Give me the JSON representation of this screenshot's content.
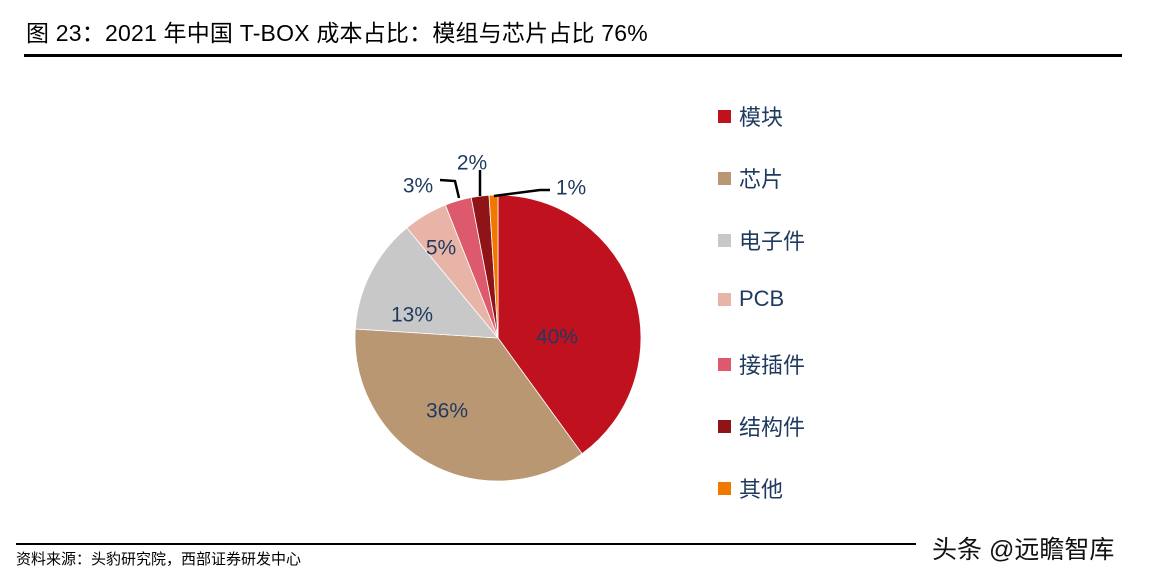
{
  "title": "图 23：2021 年中国 T-BOX 成本占比：模组与芯片占比 76%",
  "source": "资料来源：头豹研究院，西部证券研发中心",
  "watermark": "头条 @远瞻智库",
  "chart_data": {
    "type": "pie",
    "title": "2021 年中国 T-BOX 成本占比：模组与芯片占比 76%",
    "categories": [
      "模块",
      "芯片",
      "电子件",
      "PCB",
      "接插件",
      "结构件",
      "其他"
    ],
    "values": [
      40,
      36,
      13,
      5,
      3,
      2,
      1
    ],
    "labels": [
      "40%",
      "36%",
      "13%",
      "5%",
      "3%",
      "2%",
      "1%"
    ],
    "colors": [
      "#C0111F",
      "#B99772",
      "#C8C8C8",
      "#E9B4A8",
      "#DC5A6B",
      "#8E1418",
      "#F07800"
    ],
    "start_angle": "12 o'clock",
    "direction": "clockwise",
    "legend_position": "right"
  },
  "legend": [
    {
      "label": "模块",
      "color": "#C0111F"
    },
    {
      "label": "芯片",
      "color": "#B99772"
    },
    {
      "label": "电子件",
      "color": "#C8C8C8"
    },
    {
      "label": "PCB",
      "color": "#E9B4A8"
    },
    {
      "label": "接插件",
      "color": "#DC5A6B"
    },
    {
      "label": "结构件",
      "color": "#8E1418"
    },
    {
      "label": "其他",
      "color": "#F07800"
    }
  ]
}
